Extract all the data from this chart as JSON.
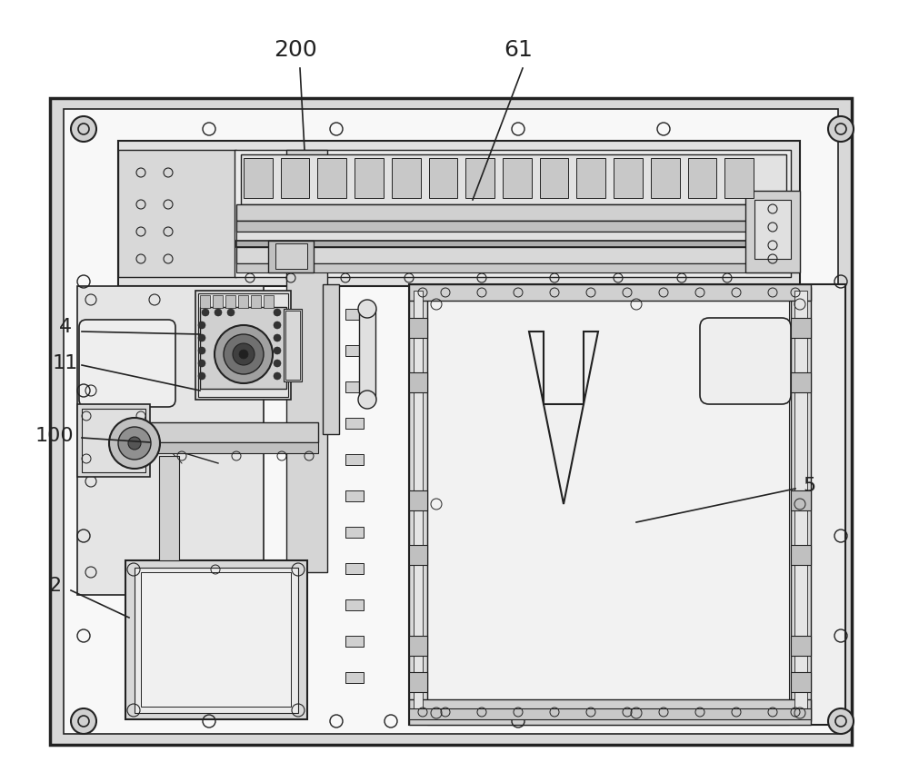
{
  "bg_color": "#ffffff",
  "plate_color": "#d4d4d4",
  "plate_inner_color": "#f5f5f5",
  "line_color": "#222222",
  "gray1": "#e8e8e8",
  "gray2": "#d0d0d0",
  "gray3": "#b8b8b8",
  "gray4": "#a0a0a0",
  "gray5": "#888888",
  "dark": "#444444",
  "figsize": [
    10.0,
    8.61
  ],
  "dpi": 100
}
